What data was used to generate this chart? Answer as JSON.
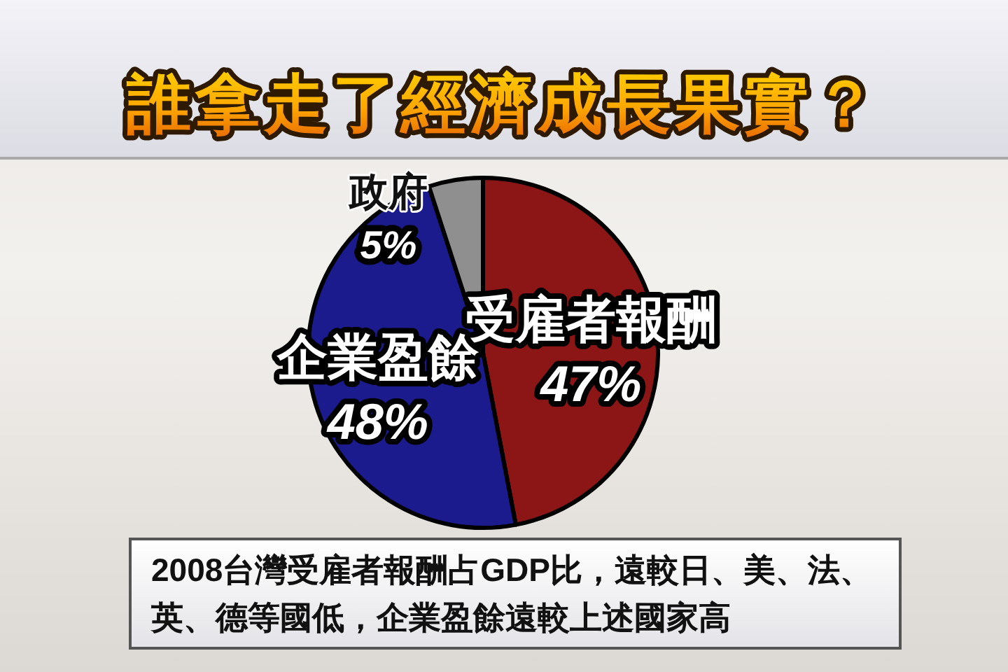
{
  "chart_data": {
    "type": "pie",
    "title": "誰拿走了經濟成長果實？",
    "categories": [
      "受雇者報酬",
      "企業盈餘",
      "政府"
    ],
    "values": [
      47,
      48,
      5
    ],
    "colors": [
      "#8c1616",
      "#1b1b8e",
      "#8f8f8f"
    ],
    "value_labels": [
      "47%",
      "48%",
      "5%"
    ],
    "annotations": [
      "2008台灣受雇者報酬占GDP比，遠較日、美、法、英、德等國低，企業盈餘遠較上述國家高"
    ]
  }
}
